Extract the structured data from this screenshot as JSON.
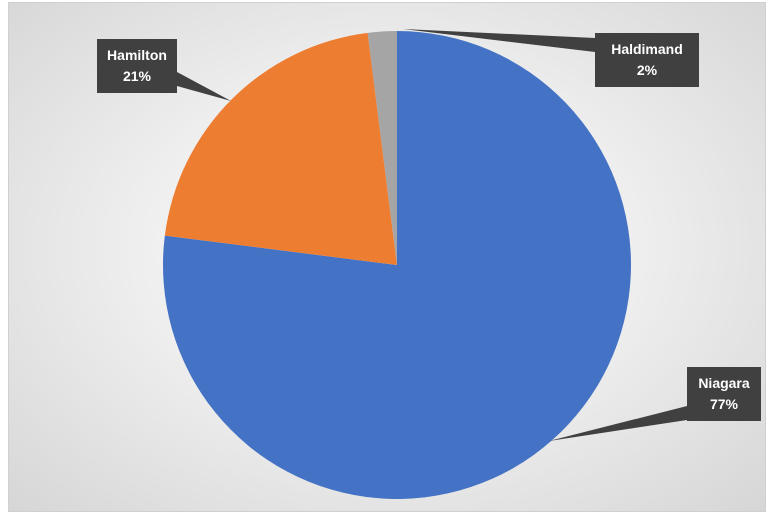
{
  "chart_data": {
    "type": "pie",
    "title": "",
    "start_angle_deg": 0,
    "direction": "clockwise",
    "slices": [
      {
        "name": "Niagara",
        "value": 77,
        "label_pct": "77%",
        "color": "#4472c4"
      },
      {
        "name": "Hamilton",
        "value": 21,
        "label_pct": "21%",
        "color": "#ed7d31"
      },
      {
        "name": "Haldimand",
        "value": 2,
        "label_pct": "2%",
        "color": "#a5a5a5"
      }
    ],
    "data_label_style": {
      "background": "#404040",
      "text_color": "#ffffff",
      "callout": true
    }
  }
}
